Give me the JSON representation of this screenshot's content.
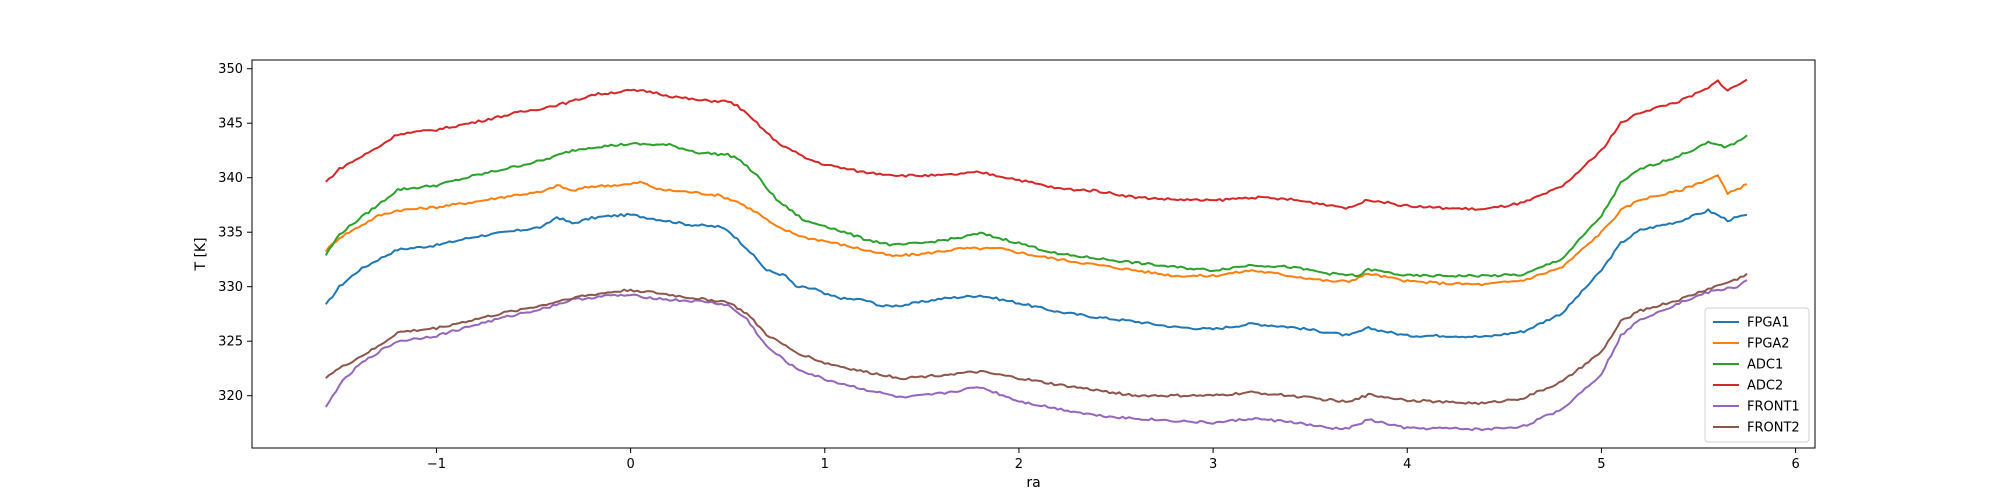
{
  "chart_data": {
    "type": "line",
    "title": "",
    "xlabel": "ra",
    "ylabel": "T [K]",
    "xlim": [
      -1.95,
      6.1
    ],
    "ylim": [
      315.2,
      350.8
    ],
    "xticks": [
      -1,
      0,
      1,
      2,
      3,
      4,
      5,
      6
    ],
    "xtick_labels": [
      "−1",
      "0",
      "1",
      "2",
      "3",
      "4",
      "5",
      "6"
    ],
    "yticks": [
      320,
      325,
      330,
      335,
      340,
      345,
      350
    ],
    "ytick_labels": [
      "320",
      "325",
      "330",
      "335",
      "340",
      "345",
      "350"
    ],
    "grid": false,
    "legend": "lower-right",
    "series": [
      {
        "name": "FPGA1",
        "color": "#1f77b4",
        "points": [
          [
            -1.57,
            328.3
          ],
          [
            -1.5,
            330.0
          ],
          [
            -1.4,
            331.5
          ],
          [
            -1.3,
            332.5
          ],
          [
            -1.2,
            333.4
          ],
          [
            -1.0,
            333.8
          ],
          [
            -0.8,
            334.6
          ],
          [
            -0.6,
            335.1
          ],
          [
            -0.45,
            335.5
          ],
          [
            -0.38,
            336.4
          ],
          [
            -0.3,
            335.8
          ],
          [
            -0.2,
            336.3
          ],
          [
            -0.1,
            336.5
          ],
          [
            0.0,
            336.6
          ],
          [
            0.1,
            336.3
          ],
          [
            0.2,
            336.0
          ],
          [
            0.3,
            335.7
          ],
          [
            0.45,
            335.5
          ],
          [
            0.5,
            335.2
          ],
          [
            0.6,
            333.5
          ],
          [
            0.7,
            331.5
          ],
          [
            0.8,
            331.0
          ],
          [
            0.85,
            330.0
          ],
          [
            0.95,
            329.8
          ],
          [
            1.0,
            329.3
          ],
          [
            1.1,
            328.9
          ],
          [
            1.2,
            328.8
          ],
          [
            1.3,
            328.2
          ],
          [
            1.4,
            328.3
          ],
          [
            1.6,
            328.9
          ],
          [
            1.8,
            329.2
          ],
          [
            2.0,
            328.5
          ],
          [
            2.2,
            327.7
          ],
          [
            2.4,
            327.2
          ],
          [
            2.6,
            326.8
          ],
          [
            2.8,
            326.3
          ],
          [
            3.0,
            326.1
          ],
          [
            3.2,
            326.6
          ],
          [
            3.4,
            326.3
          ],
          [
            3.6,
            325.8
          ],
          [
            3.7,
            325.5
          ],
          [
            3.8,
            326.2
          ],
          [
            4.0,
            325.5
          ],
          [
            4.2,
            325.5
          ],
          [
            4.4,
            325.4
          ],
          [
            4.6,
            325.9
          ],
          [
            4.8,
            327.6
          ],
          [
            5.0,
            331.5
          ],
          [
            5.1,
            334.0
          ],
          [
            5.2,
            335.2
          ],
          [
            5.4,
            336.0
          ],
          [
            5.55,
            337.0
          ],
          [
            5.65,
            336.1
          ],
          [
            5.75,
            336.6
          ]
        ]
      },
      {
        "name": "FPGA2",
        "color": "#ff7f0e",
        "points": [
          [
            -1.57,
            333.3
          ],
          [
            -1.5,
            334.5
          ],
          [
            -1.4,
            335.5
          ],
          [
            -1.3,
            336.5
          ],
          [
            -1.2,
            337.0
          ],
          [
            -1.0,
            337.3
          ],
          [
            -0.8,
            337.8
          ],
          [
            -0.6,
            338.4
          ],
          [
            -0.45,
            338.7
          ],
          [
            -0.38,
            339.3
          ],
          [
            -0.3,
            338.8
          ],
          [
            -0.2,
            339.2
          ],
          [
            -0.1,
            339.3
          ],
          [
            0.0,
            339.4
          ],
          [
            0.05,
            339.6
          ],
          [
            0.15,
            338.9
          ],
          [
            0.3,
            338.7
          ],
          [
            0.45,
            338.4
          ],
          [
            0.55,
            337.8
          ],
          [
            0.65,
            336.8
          ],
          [
            0.75,
            335.5
          ],
          [
            0.9,
            334.5
          ],
          [
            1.0,
            334.2
          ],
          [
            1.2,
            333.4
          ],
          [
            1.35,
            332.8
          ],
          [
            1.5,
            333.0
          ],
          [
            1.7,
            333.5
          ],
          [
            1.9,
            333.5
          ],
          [
            2.1,
            332.8
          ],
          [
            2.4,
            332.0
          ],
          [
            2.6,
            331.5
          ],
          [
            2.8,
            331.0
          ],
          [
            3.0,
            331.0
          ],
          [
            3.2,
            331.5
          ],
          [
            3.4,
            331.0
          ],
          [
            3.6,
            330.5
          ],
          [
            3.7,
            330.5
          ],
          [
            3.8,
            331.2
          ],
          [
            4.0,
            330.5
          ],
          [
            4.2,
            330.3
          ],
          [
            4.4,
            330.2
          ],
          [
            4.6,
            330.6
          ],
          [
            4.8,
            331.8
          ],
          [
            5.0,
            335.0
          ],
          [
            5.1,
            337.0
          ],
          [
            5.2,
            338.0
          ],
          [
            5.4,
            338.8
          ],
          [
            5.6,
            340.2
          ],
          [
            5.65,
            338.5
          ],
          [
            5.75,
            339.4
          ]
        ]
      },
      {
        "name": "ADC1",
        "color": "#2ca02c",
        "points": [
          [
            -1.57,
            332.9
          ],
          [
            -1.5,
            334.8
          ],
          [
            -1.4,
            336.2
          ],
          [
            -1.3,
            337.5
          ],
          [
            -1.2,
            338.9
          ],
          [
            -1.0,
            339.3
          ],
          [
            -0.8,
            340.2
          ],
          [
            -0.6,
            341.0
          ],
          [
            -0.45,
            341.6
          ],
          [
            -0.3,
            342.5
          ],
          [
            -0.2,
            342.8
          ],
          [
            0.0,
            343.1
          ],
          [
            0.2,
            343.0
          ],
          [
            0.35,
            342.3
          ],
          [
            0.5,
            342.1
          ],
          [
            0.55,
            341.8
          ],
          [
            0.65,
            340.2
          ],
          [
            0.75,
            338.0
          ],
          [
            0.9,
            336.0
          ],
          [
            1.0,
            335.6
          ],
          [
            1.2,
            334.4
          ],
          [
            1.35,
            333.8
          ],
          [
            1.5,
            334.0
          ],
          [
            1.7,
            334.5
          ],
          [
            1.8,
            334.9
          ],
          [
            2.0,
            334.0
          ],
          [
            2.2,
            333.0
          ],
          [
            2.4,
            332.6
          ],
          [
            2.6,
            332.2
          ],
          [
            2.8,
            331.8
          ],
          [
            3.0,
            331.5
          ],
          [
            3.2,
            332.0
          ],
          [
            3.4,
            331.8
          ],
          [
            3.6,
            331.2
          ],
          [
            3.75,
            331.0
          ],
          [
            3.8,
            331.6
          ],
          [
            4.0,
            331.0
          ],
          [
            4.2,
            331.0
          ],
          [
            4.4,
            331.0
          ],
          [
            4.6,
            331.1
          ],
          [
            4.8,
            332.6
          ],
          [
            5.0,
            336.5
          ],
          [
            5.1,
            339.5
          ],
          [
            5.2,
            340.8
          ],
          [
            5.4,
            342.0
          ],
          [
            5.55,
            343.2
          ],
          [
            5.65,
            342.8
          ],
          [
            5.75,
            343.9
          ]
        ]
      },
      {
        "name": "ADC2",
        "color": "#d62728",
        "points": [
          [
            -1.57,
            339.6
          ],
          [
            -1.5,
            340.8
          ],
          [
            -1.4,
            341.8
          ],
          [
            -1.3,
            342.8
          ],
          [
            -1.2,
            344.0
          ],
          [
            -1.0,
            344.4
          ],
          [
            -0.8,
            345.1
          ],
          [
            -0.6,
            345.9
          ],
          [
            -0.45,
            346.4
          ],
          [
            -0.3,
            347.0
          ],
          [
            -0.2,
            347.6
          ],
          [
            0.0,
            348.0
          ],
          [
            0.1,
            347.9
          ],
          [
            0.2,
            347.5
          ],
          [
            0.35,
            347.1
          ],
          [
            0.5,
            347.0
          ],
          [
            0.55,
            346.6
          ],
          [
            0.65,
            345.0
          ],
          [
            0.75,
            343.3
          ],
          [
            0.9,
            341.8
          ],
          [
            1.0,
            341.2
          ],
          [
            1.2,
            340.5
          ],
          [
            1.4,
            340.2
          ],
          [
            1.6,
            340.2
          ],
          [
            1.8,
            340.5
          ],
          [
            2.0,
            339.8
          ],
          [
            2.2,
            339.0
          ],
          [
            2.4,
            338.8
          ],
          [
            2.6,
            338.2
          ],
          [
            2.8,
            338.0
          ],
          [
            3.0,
            337.9
          ],
          [
            3.2,
            338.2
          ],
          [
            3.4,
            338.0
          ],
          [
            3.6,
            337.5
          ],
          [
            3.7,
            337.2
          ],
          [
            3.8,
            338.0
          ],
          [
            4.0,
            337.4
          ],
          [
            4.2,
            337.2
          ],
          [
            4.4,
            337.1
          ],
          [
            4.6,
            337.7
          ],
          [
            4.8,
            339.2
          ],
          [
            5.0,
            342.5
          ],
          [
            5.1,
            345.0
          ],
          [
            5.2,
            346.0
          ],
          [
            5.4,
            347.0
          ],
          [
            5.55,
            348.2
          ],
          [
            5.6,
            348.9
          ],
          [
            5.65,
            348.0
          ],
          [
            5.75,
            349.0
          ]
        ]
      },
      {
        "name": "FRONT1",
        "color": "#9467bd",
        "points": [
          [
            -1.57,
            318.9
          ],
          [
            -1.5,
            321.0
          ],
          [
            -1.4,
            322.8
          ],
          [
            -1.3,
            324.0
          ],
          [
            -1.2,
            325.0
          ],
          [
            -1.0,
            325.5
          ],
          [
            -0.8,
            326.5
          ],
          [
            -0.6,
            327.4
          ],
          [
            -0.45,
            328.0
          ],
          [
            -0.3,
            328.8
          ],
          [
            -0.1,
            329.2
          ],
          [
            0.0,
            329.2
          ],
          [
            0.2,
            328.8
          ],
          [
            0.4,
            328.6
          ],
          [
            0.5,
            328.3
          ],
          [
            0.6,
            327.0
          ],
          [
            0.7,
            324.5
          ],
          [
            0.85,
            322.5
          ],
          [
            1.0,
            321.5
          ],
          [
            1.2,
            320.6
          ],
          [
            1.4,
            319.8
          ],
          [
            1.6,
            320.2
          ],
          [
            1.8,
            320.8
          ],
          [
            2.0,
            319.5
          ],
          [
            2.2,
            318.8
          ],
          [
            2.4,
            318.2
          ],
          [
            2.6,
            317.9
          ],
          [
            2.8,
            317.7
          ],
          [
            3.0,
            317.5
          ],
          [
            3.2,
            317.9
          ],
          [
            3.4,
            317.6
          ],
          [
            3.6,
            317.0
          ],
          [
            3.7,
            317.0
          ],
          [
            3.8,
            317.8
          ],
          [
            4.0,
            317.0
          ],
          [
            4.2,
            317.0
          ],
          [
            4.4,
            316.9
          ],
          [
            4.6,
            317.2
          ],
          [
            4.8,
            318.8
          ],
          [
            5.0,
            322.0
          ],
          [
            5.1,
            325.5
          ],
          [
            5.2,
            327.0
          ],
          [
            5.4,
            328.5
          ],
          [
            5.55,
            329.5
          ],
          [
            5.7,
            330.0
          ],
          [
            5.75,
            330.6
          ]
        ]
      },
      {
        "name": "FRONT2",
        "color": "#8c564b",
        "points": [
          [
            -1.57,
            321.7
          ],
          [
            -1.5,
            322.5
          ],
          [
            -1.4,
            323.5
          ],
          [
            -1.3,
            324.5
          ],
          [
            -1.2,
            325.8
          ],
          [
            -1.0,
            326.2
          ],
          [
            -0.8,
            327.0
          ],
          [
            -0.6,
            327.8
          ],
          [
            -0.45,
            328.3
          ],
          [
            -0.3,
            329.0
          ],
          [
            -0.1,
            329.5
          ],
          [
            0.0,
            329.7
          ],
          [
            0.1,
            329.5
          ],
          [
            0.3,
            329.0
          ],
          [
            0.5,
            328.6
          ],
          [
            0.6,
            327.5
          ],
          [
            0.7,
            325.6
          ],
          [
            0.85,
            324.0
          ],
          [
            1.0,
            323.0
          ],
          [
            1.2,
            322.2
          ],
          [
            1.4,
            321.6
          ],
          [
            1.6,
            321.9
          ],
          [
            1.8,
            322.2
          ],
          [
            2.0,
            321.6
          ],
          [
            2.2,
            321.0
          ],
          [
            2.4,
            320.5
          ],
          [
            2.6,
            320.0
          ],
          [
            2.8,
            320.0
          ],
          [
            3.0,
            320.0
          ],
          [
            3.2,
            320.3
          ],
          [
            3.4,
            320.0
          ],
          [
            3.6,
            319.6
          ],
          [
            3.7,
            319.4
          ],
          [
            3.8,
            320.1
          ],
          [
            4.0,
            319.6
          ],
          [
            4.2,
            319.4
          ],
          [
            4.4,
            319.3
          ],
          [
            4.6,
            319.8
          ],
          [
            4.8,
            321.3
          ],
          [
            5.0,
            324.0
          ],
          [
            5.1,
            326.8
          ],
          [
            5.2,
            327.8
          ],
          [
            5.4,
            328.8
          ],
          [
            5.55,
            329.8
          ],
          [
            5.7,
            330.7
          ],
          [
            5.75,
            331.2
          ]
        ]
      }
    ]
  }
}
